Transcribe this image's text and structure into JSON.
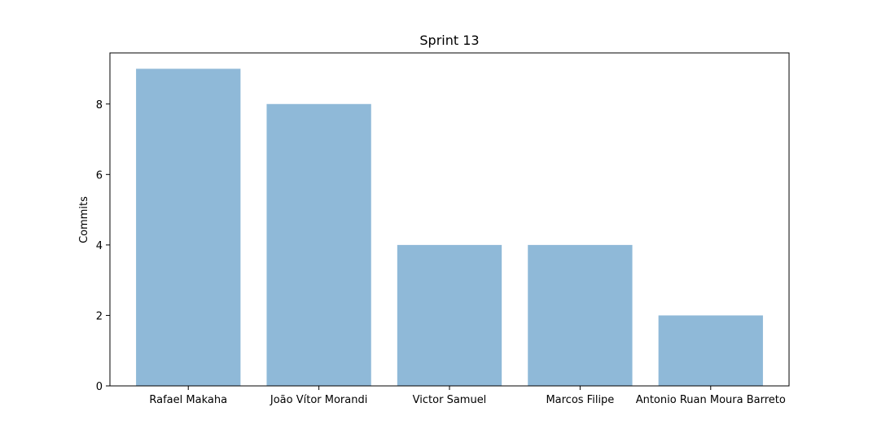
{
  "chart_data": {
    "type": "bar",
    "title": "Sprint 13",
    "xlabel": "",
    "ylabel": "Commits",
    "categories": [
      "Rafael Makaha",
      "João Vítor Morandi",
      "Victor Samuel",
      "Marcos Filipe",
      "Antonio Ruan Moura Barreto"
    ],
    "values": [
      9,
      8,
      4,
      4,
      2
    ],
    "ylim": [
      0,
      9.45
    ],
    "yticks": [
      0,
      2,
      4,
      6,
      8
    ],
    "bar_color": "#8fb9d8",
    "grid": false
  }
}
